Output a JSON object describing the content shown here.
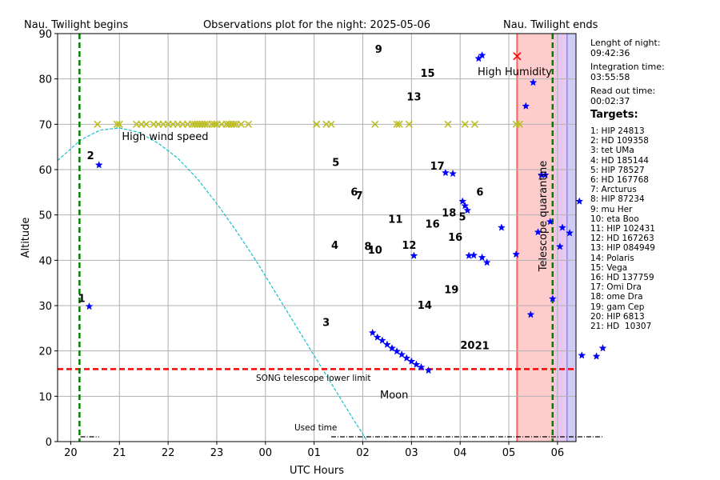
{
  "chart_data": {
    "type": "scatter",
    "title": "Observations plot for the night: 2025-05-06",
    "xlabel": "UTC Hours",
    "ylabel": "Altitude",
    "xlim_hours": [
      19.73,
      30.38
    ],
    "ylim": [
      0,
      90
    ],
    "x_tick_labels": [
      "20",
      "21",
      "22",
      "23",
      "00",
      "01",
      "02",
      "03",
      "04",
      "05",
      "06"
    ],
    "x_tick_hours": [
      20,
      21,
      22,
      23,
      24,
      25,
      26,
      27,
      28,
      29,
      30
    ],
    "y_ticks": [
      0,
      10,
      20,
      30,
      40,
      50,
      60,
      70,
      80,
      90
    ],
    "grid": true,
    "twilight_begin_label": "Nau. Twilight begins",
    "twilight_end_label": "Nau. Twilight ends",
    "twilight_begin_hour": 20.18,
    "twilight_end_hour": 29.9,
    "lower_limit": 16,
    "lower_limit_label": "SONG telescope lower limit",
    "moon_label": "Moon",
    "used_time_label": "Used time",
    "wind_label": "High wind speed",
    "humidity_label": "High Humidity",
    "quarantine_label": "Telescope quarantine",
    "quarantine_start_hour": 29.17,
    "moon_curve": [
      [
        19.73,
        62
      ],
      [
        20.2,
        66.5
      ],
      [
        20.6,
        68.7
      ],
      [
        21.0,
        69.2
      ],
      [
        21.4,
        68.2
      ],
      [
        21.8,
        65.8
      ],
      [
        22.2,
        62.5
      ],
      [
        22.6,
        58
      ],
      [
        23.0,
        52.5
      ],
      [
        23.4,
        46.5
      ],
      [
        23.8,
        40
      ],
      [
        24.2,
        33
      ],
      [
        24.6,
        26
      ],
      [
        25.0,
        19
      ],
      [
        25.4,
        12
      ],
      [
        25.8,
        5
      ],
      [
        26.1,
        0
      ]
    ],
    "wind_x": [
      20.55,
      20.95,
      21.0,
      21.35,
      21.45,
      21.55,
      21.7,
      21.8,
      21.9,
      22.0,
      22.1,
      22.2,
      22.3,
      22.4,
      22.5,
      22.55,
      22.6,
      22.65,
      22.7,
      22.75,
      22.8,
      22.9,
      22.95,
      23.0,
      23.1,
      23.2,
      23.25,
      23.3,
      23.35,
      23.4,
      23.5,
      23.65,
      25.05,
      25.05,
      25.25,
      25.35,
      26.25,
      26.7,
      26.75,
      26.95,
      27.75,
      28.1,
      28.3
    ],
    "humidity_marks": [
      [
        29.15,
        70
      ],
      [
        29.22,
        70
      ],
      [
        29.17,
        85
      ]
    ],
    "observations": [
      [
        20.38,
        29.8
      ],
      [
        20.58,
        61
      ],
      [
        26.2,
        24
      ],
      [
        26.3,
        23
      ],
      [
        26.4,
        22.3
      ],
      [
        26.5,
        21.4
      ],
      [
        26.6,
        20.6
      ],
      [
        26.7,
        19.9
      ],
      [
        26.8,
        19.2
      ],
      [
        26.9,
        18.4
      ],
      [
        27.0,
        17.7
      ],
      [
        27.1,
        17
      ],
      [
        27.2,
        16.4
      ],
      [
        27.35,
        15.7
      ],
      [
        27.05,
        41
      ],
      [
        27.7,
        59.3
      ],
      [
        27.85,
        59.1
      ],
      [
        28.05,
        53
      ],
      [
        28.1,
        52
      ],
      [
        28.15,
        51
      ],
      [
        28.18,
        41
      ],
      [
        28.28,
        41.1
      ],
      [
        28.45,
        40.6
      ],
      [
        28.55,
        39.5
      ],
      [
        28.38,
        84.5
      ],
      [
        28.45,
        85.2
      ],
      [
        28.85,
        47.2
      ],
      [
        29.15,
        41.3
      ],
      [
        29.35,
        74
      ],
      [
        29.5,
        79.2
      ],
      [
        29.45,
        28
      ],
      [
        29.6,
        46.2
      ],
      [
        29.67,
        58.8
      ],
      [
        29.75,
        58.8
      ],
      [
        29.85,
        48.5
      ],
      [
        29.9,
        31.5
      ],
      [
        30.05,
        43
      ],
      [
        30.1,
        47.2
      ],
      [
        30.25,
        46
      ],
      [
        30.45,
        53
      ],
      [
        30.5,
        19
      ],
      [
        30.8,
        18.8
      ],
      [
        30.93,
        20.6
      ]
    ],
    "target_labels": [
      {
        "text": "1",
        "x": 20.3,
        "y": 30.8
      },
      {
        "text": "2",
        "x": 20.48,
        "y": 62.3
      },
      {
        "text": "3",
        "x": 25.32,
        "y": 25.5
      },
      {
        "text": "4",
        "x": 25.5,
        "y": 42.5
      },
      {
        "text": "5",
        "x": 25.52,
        "y": 60.8
      },
      {
        "text": "6",
        "x": 25.9,
        "y": 54.3
      },
      {
        "text": "7",
        "x": 26.0,
        "y": 53.5
      },
      {
        "text": "8",
        "x": 26.18,
        "y": 42.3
      },
      {
        "text": "10",
        "x": 26.4,
        "y": 41.5
      },
      {
        "text": "9",
        "x": 26.4,
        "y": 85.8
      },
      {
        "text": "11",
        "x": 26.82,
        "y": 48.3
      },
      {
        "text": "12",
        "x": 27.1,
        "y": 42.5
      },
      {
        "text": "13",
        "x": 27.2,
        "y": 75.3
      },
      {
        "text": "15",
        "x": 27.48,
        "y": 80.5
      },
      {
        "text": "14",
        "x": 27.42,
        "y": 29.3
      },
      {
        "text": "16",
        "x": 27.58,
        "y": 47.2
      },
      {
        "text": "17",
        "x": 27.68,
        "y": 60
      },
      {
        "text": "18",
        "x": 27.92,
        "y": 49.7
      },
      {
        "text": "5",
        "x": 28.12,
        "y": 48.8
      },
      {
        "text": "16",
        "x": 28.05,
        "y": 44.3
      },
      {
        "text": "19",
        "x": 27.97,
        "y": 32.7
      },
      {
        "text": "6",
        "x": 28.48,
        "y": 54.3
      },
      {
        "text": "20",
        "x": 28.3,
        "y": 20.5
      },
      {
        "text": "21",
        "x": 28.6,
        "y": 20.4
      }
    ],
    "used_time_segments": [
      [
        20.2,
        20.58
      ],
      [
        25.35,
        30.95
      ]
    ]
  },
  "side": {
    "night_label": "Lenght of night:",
    "night_value": "09:42:36",
    "integration_label": "Integration time:",
    "integration_value": "03:55:58",
    "readout_label": "Read out time:",
    "readout_value": "00:02:37",
    "targets_heading": "Targets:",
    "targets": [
      "1: HIP 24813",
      "2: HD 109358",
      "3: tet UMa",
      "4: HD 185144",
      "5: HIP 78527",
      "6: HD 167768",
      "7: Arcturus",
      "8: HIP 87234",
      "9: mu Her",
      "10: eta Boo",
      "11: HIP 102431",
      "12: HD 167263",
      "13: HIP 084949",
      "14: Polaris",
      "15: Vega",
      "16: HD 137759",
      "17: Omi Dra",
      "18: ome Dra",
      "19: gam Cep",
      "20: HIP 6813",
      "21: HD  10307"
    ]
  }
}
